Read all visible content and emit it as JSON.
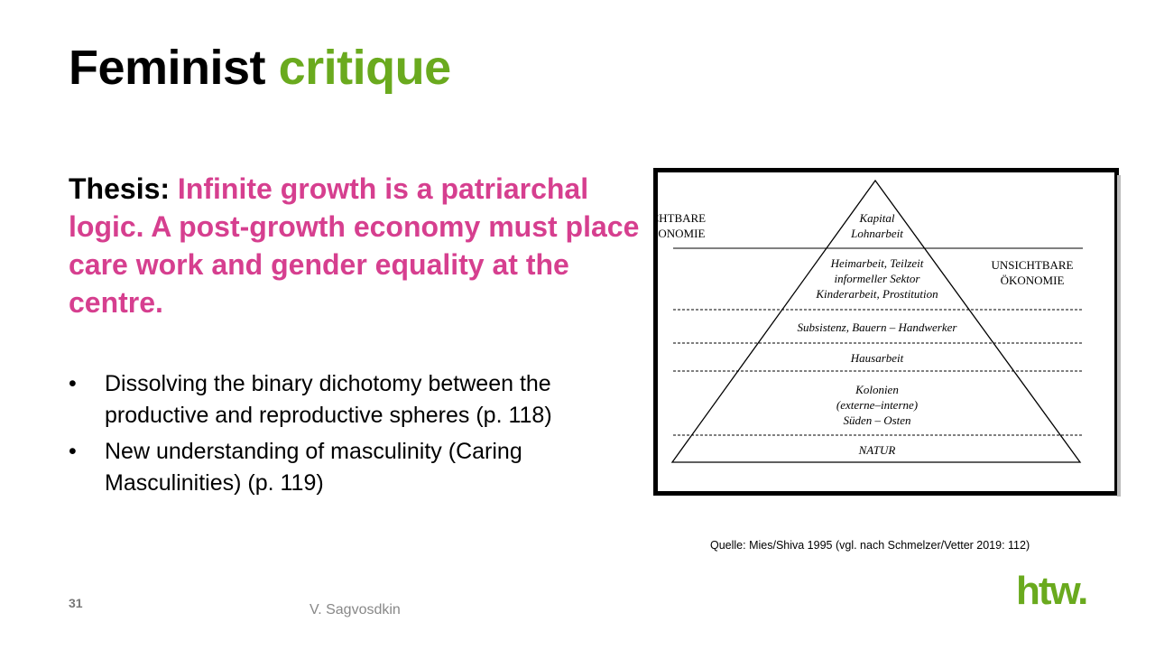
{
  "slide": {
    "title": {
      "main": "Feminist",
      "highlight": "critique"
    },
    "thesis": {
      "label": "Thesis:",
      "text": "Infinite growth is a patriarchal logic. A post-growth economy must place care work and gender equality at the centre."
    },
    "bullets": [
      "Dissolving the binary dichotomy between the productive and reproductive spheres (p. 118)",
      "New understanding of masculinity (Caring Masculinities) (p. 119)"
    ],
    "figure": {
      "left_label": [
        "SICHTBARE",
        "ÖKONOMIE"
      ],
      "right_label": [
        "UNSICHTBARE",
        "ÖKONOMIE"
      ],
      "levels": [
        [
          "Kapital",
          "Lohnarbeit"
        ],
        [
          "Heimarbeit, Teilzeit",
          "informeller Sektor",
          "Kinderarbeit, Prostitution"
        ],
        [
          "Subsistenz, Bauern – Handwerker"
        ],
        [
          "Hausarbeit"
        ],
        [
          "Kolonien",
          "(externe–interne)",
          "Süden – Osten"
        ],
        [
          "NATUR"
        ]
      ]
    },
    "caption": "Quelle: Mies/Shiva 1995 (vgl. nach Schmelzer/Vetter 2019: 112)",
    "page_number": "31",
    "author": "V. Sagvosdkin",
    "logo": "htw."
  }
}
